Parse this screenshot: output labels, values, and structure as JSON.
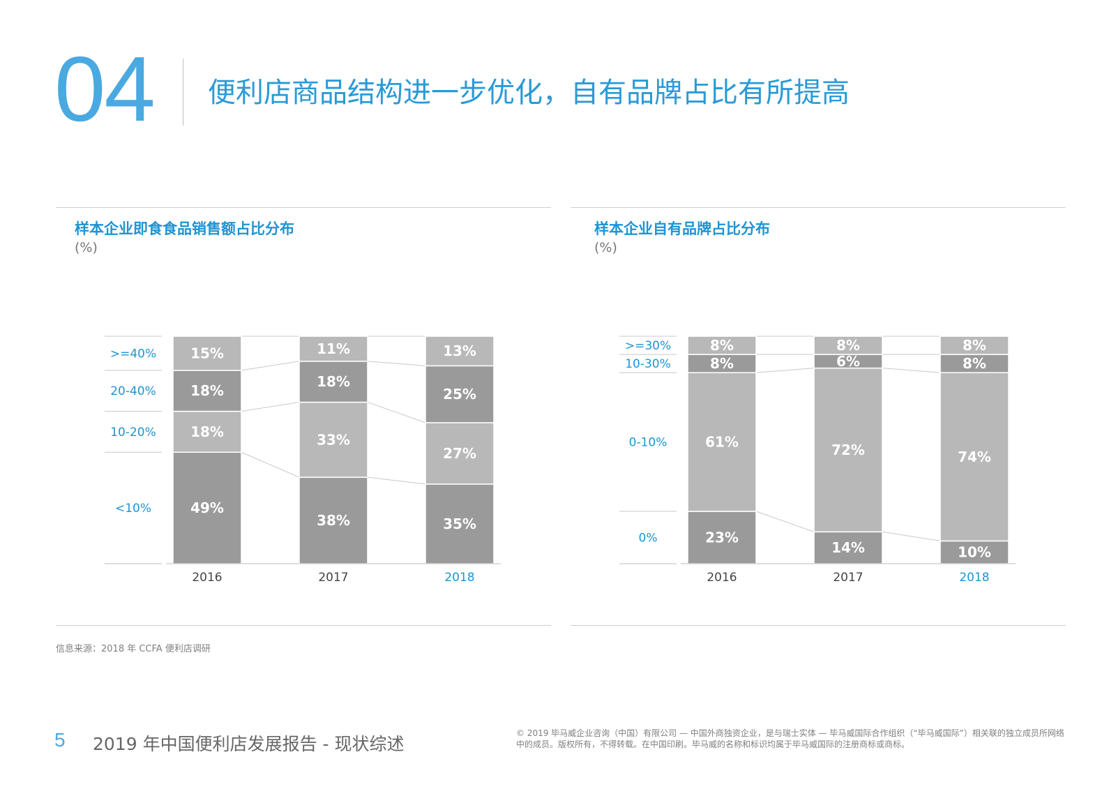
{
  "header": {
    "section_number": "04",
    "title": "便利店商品结构进一步优化，自有品牌占比有所提高"
  },
  "left_panel": {
    "title": "样本企业即食食品销售额占比分布",
    "unit": "(%)"
  },
  "right_panel": {
    "title": "样本企业自有品牌占比分布",
    "unit": "(%)"
  },
  "source": "信息来源：2018 年 CCFA 便利店调研",
  "footer": {
    "page_number": "5",
    "report_name": "2019 年中国便利店发展报告 - 现状综述",
    "copyright": "© 2019 毕马威企业咨询（中国）有限公司 — 中国外商独资企业，是与瑞士实体 — 毕马威国际合作组织（“毕马威国际”）相关联的独立成员所网络中的成员。版权所有，不得转载。在中国印刷。毕马威的名称和标识均属于毕马威国际的注册商标或商标。"
  },
  "colors": {
    "accent": "#1e94d2",
    "bar_dark": "#9a9a9a",
    "bar_light": "#b8b8b8",
    "data_label": "#ffffff",
    "connector": "#c8c8c8"
  },
  "chart_data": [
    {
      "type": "bar",
      "stacked": true,
      "categories": [
        "2016",
        "2017",
        "2018"
      ],
      "highlight_category": "2018",
      "ylim": [
        0,
        100
      ],
      "series": [
        {
          "name": "<10%",
          "values": [
            49,
            38,
            35
          ],
          "labels": [
            "49%",
            "38%",
            "35%"
          ]
        },
        {
          "name": "10-20%",
          "values": [
            18,
            33,
            27
          ],
          "labels": [
            "18%",
            "33%",
            "27%"
          ]
        },
        {
          "name": "20-40%",
          "values": [
            18,
            18,
            25
          ],
          "labels": [
            "18%",
            "18%",
            "25%"
          ]
        },
        {
          "name": ">=40%",
          "values": [
            15,
            11,
            13
          ],
          "labels": [
            "15%",
            "11%",
            "13%"
          ]
        }
      ],
      "legend_placement": "left"
    },
    {
      "type": "bar",
      "stacked": true,
      "categories": [
        "2016",
        "2017",
        "2018"
      ],
      "highlight_category": "2018",
      "ylim": [
        0,
        100
      ],
      "series": [
        {
          "name": "0%",
          "values": [
            23,
            14,
            10
          ],
          "labels": [
            "23%",
            "14%",
            "10%"
          ]
        },
        {
          "name": "0-10%",
          "values": [
            61,
            72,
            74
          ],
          "labels": [
            "61%",
            "72%",
            "74%"
          ]
        },
        {
          "name": "10-30%",
          "values": [
            8,
            6,
            8
          ],
          "labels": [
            "8%",
            "6%",
            "8%"
          ]
        },
        {
          "name": ">=30%",
          "values": [
            8,
            8,
            8
          ],
          "labels": [
            "8%",
            "8%",
            "8%"
          ]
        }
      ],
      "legend_placement": "left"
    }
  ]
}
